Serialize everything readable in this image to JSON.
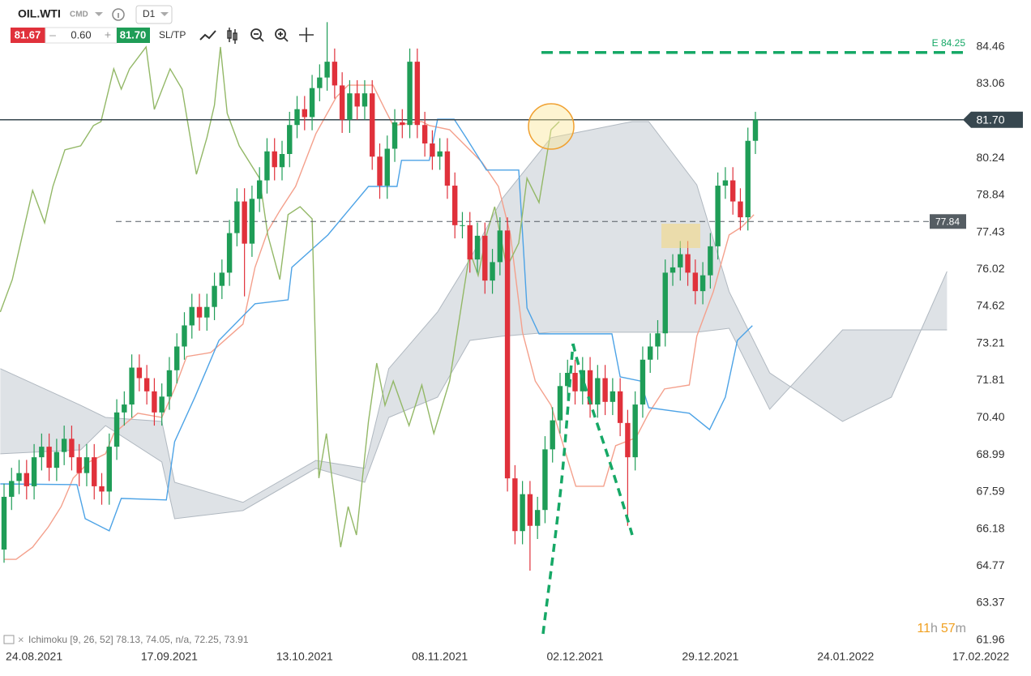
{
  "toolbar": {
    "symbol": "OIL.WTI",
    "category": "CMD",
    "interval": "D1",
    "bid": "81.67",
    "spread": "0.60",
    "ask": "81.70",
    "sltp": "SL/TP"
  },
  "indicator_legend": "Ichimoku [9, 26, 52] 78.13, 74.05, n/a, 72.25, 73.91",
  "timer": {
    "hours": "11",
    "hours_unit": "h",
    "minutes": "57",
    "minutes_unit": "m"
  },
  "chart_data": {
    "type": "candlestick",
    "up_color": "#1f9d57",
    "down_color": "#e0313b",
    "xlim": [
      -0.54,
      135.6
    ],
    "xticks": [
      {
        "value": 4,
        "label": "24.08.2021"
      },
      {
        "value": 22,
        "label": "17.09.2021"
      },
      {
        "value": 40,
        "label": "13.10.2021"
      },
      {
        "value": 58,
        "label": "08.11.2021"
      },
      {
        "value": 76,
        "label": "02.12.2021"
      },
      {
        "value": 94,
        "label": "29.12.2021"
      },
      {
        "value": 112,
        "label": "24.01.2022"
      },
      {
        "value": 130,
        "label": "17.02.2022"
      }
    ],
    "ylim": [
      61.65,
      86.24
    ],
    "yticks": [
      84.46,
      83.06,
      80.24,
      78.84,
      77.43,
      76.02,
      74.62,
      73.21,
      71.81,
      {
        "value": 70.4,
        "label": "70.40"
      },
      68.99,
      67.59,
      66.18,
      64.77,
      63.37,
      61.96
    ],
    "grid": false,
    "open": [
      65.4,
      67.4,
      68.0,
      68.3,
      67.8,
      68.9,
      69.3,
      68.5,
      69.1,
      69.6,
      68.9,
      68.3,
      68.9,
      67.8,
      67.6,
      69.3,
      70.6,
      70.9,
      72.3,
      71.9,
      71.4,
      70.6,
      71.2,
      72.2,
      73.1,
      73.9,
      74.6,
      74.2,
      74.6,
      75.4,
      75.9,
      77.4,
      78.6,
      77.0,
      78.7,
      79.4,
      80.5,
      79.9,
      80.4,
      81.5,
      82.1,
      81.8,
      82.9,
      83.3,
      83.9,
      83.0,
      81.7,
      82.7,
      82.2,
      82.7,
      80.3,
      79.2,
      80.6,
      81.6,
      81.5,
      83.9,
      81.5,
      80.8,
      80.3,
      80.5,
      79.2,
      77.7,
      77.7,
      76.4,
      77.3,
      75.6,
      76.3,
      77.5,
      68.1,
      66.1,
      67.5,
      66.3,
      66.9,
      69.2,
      70.3,
      71.6,
      72.1,
      71.4,
      72.2,
      70.9,
      71.9,
      71.0,
      71.4,
      70.2,
      68.9,
      70.9,
      72.6,
      73.1,
      73.6,
      75.9,
      76.1,
      76.6,
      75.9,
      75.2,
      75.8,
      76.9,
      79.2,
      79.4,
      78.6,
      78.0,
      80.9
    ],
    "high": [
      67.9,
      68.5,
      68.8,
      68.8,
      69.4,
      69.8,
      69.8,
      69.6,
      70.1,
      70.1,
      69.4,
      69.4,
      69.4,
      68.3,
      69.8,
      71.1,
      71.4,
      72.8,
      72.8,
      72.4,
      71.9,
      71.7,
      72.7,
      73.6,
      74.4,
      75.1,
      75.1,
      75.1,
      75.9,
      76.4,
      77.9,
      79.1,
      79.1,
      79.2,
      79.9,
      81.0,
      81.0,
      80.9,
      82.0,
      82.6,
      82.6,
      83.4,
      83.8,
      85.4,
      84.4,
      83.5,
      83.2,
      83.2,
      83.2,
      83.2,
      80.8,
      81.1,
      82.1,
      82.1,
      84.4,
      84.4,
      82.0,
      81.3,
      81.0,
      81.0,
      79.7,
      78.2,
      78.2,
      77.8,
      77.8,
      76.8,
      78.0,
      78.0,
      68.6,
      68.0,
      68.0,
      67.4,
      69.7,
      70.8,
      72.1,
      72.6,
      72.6,
      72.7,
      72.7,
      72.4,
      72.4,
      71.9,
      71.9,
      70.7,
      71.4,
      73.1,
      73.6,
      74.1,
      76.4,
      76.6,
      77.1,
      77.1,
      76.4,
      76.3,
      77.4,
      79.7,
      79.9,
      79.9,
      79.1,
      81.4,
      82.0
    ],
    "low": [
      64.9,
      66.9,
      67.5,
      67.3,
      67.3,
      68.4,
      68.0,
      68.0,
      68.6,
      68.4,
      67.8,
      67.8,
      67.3,
      67.1,
      67.1,
      68.8,
      70.1,
      70.4,
      71.4,
      70.9,
      70.1,
      70.1,
      70.7,
      71.7,
      72.6,
      73.4,
      73.7,
      73.7,
      74.1,
      74.9,
      75.4,
      76.9,
      75.0,
      76.5,
      78.2,
      78.9,
      79.4,
      79.4,
      79.9,
      81.0,
      81.3,
      81.3,
      82.4,
      82.8,
      82.5,
      81.2,
      81.2,
      81.7,
      81.7,
      79.8,
      78.7,
      78.7,
      80.1,
      81.0,
      81.0,
      81.0,
      80.3,
      79.8,
      79.8,
      78.7,
      77.2,
      77.2,
      75.9,
      75.9,
      75.1,
      75.1,
      75.8,
      67.6,
      65.6,
      65.6,
      64.6,
      65.8,
      66.4,
      68.7,
      69.8,
      71.1,
      70.9,
      70.9,
      70.4,
      70.4,
      70.5,
      70.5,
      69.7,
      66.3,
      68.4,
      70.4,
      72.1,
      72.6,
      73.1,
      75.4,
      75.6,
      75.4,
      74.7,
      74.7,
      75.3,
      76.4,
      78.7,
      78.1,
      77.5,
      77.5,
      80.4
    ],
    "close": [
      67.4,
      68.0,
      68.3,
      67.8,
      68.9,
      69.3,
      68.5,
      69.1,
      69.6,
      68.9,
      68.3,
      68.9,
      67.8,
      67.6,
      69.3,
      70.6,
      70.9,
      72.3,
      71.9,
      71.4,
      70.6,
      71.2,
      72.2,
      73.1,
      73.9,
      74.6,
      74.2,
      74.6,
      75.4,
      75.9,
      77.4,
      78.6,
      77.0,
      78.7,
      79.4,
      80.5,
      79.9,
      80.4,
      81.5,
      82.1,
      81.8,
      82.9,
      83.3,
      83.9,
      83.0,
      81.7,
      82.7,
      82.2,
      82.7,
      80.3,
      79.2,
      80.6,
      81.6,
      81.5,
      83.9,
      81.5,
      80.8,
      80.3,
      80.5,
      79.2,
      77.7,
      77.7,
      76.4,
      77.3,
      75.6,
      76.3,
      77.5,
      68.1,
      66.1,
      67.5,
      66.3,
      66.9,
      69.2,
      70.3,
      71.6,
      72.1,
      71.4,
      72.2,
      70.9,
      71.9,
      71.0,
      71.4,
      70.2,
      68.9,
      70.9,
      72.6,
      73.1,
      73.6,
      75.9,
      76.1,
      76.6,
      75.9,
      75.2,
      75.8,
      76.9,
      79.2,
      79.4,
      78.6,
      78.0,
      80.9,
      81.7
    ],
    "cloud": {
      "color": "#c3cad1",
      "edge_color": "#b0b8c0",
      "x": [
        -0.5,
        10.2,
        13.5,
        21,
        22.7,
        31.8,
        41.5,
        48,
        51.2,
        57.7,
        62,
        66.3,
        72.8,
        83.6,
        85.8,
        92.2,
        96.5,
        101.9,
        111.6,
        118.1,
        125.5
      ],
      "span_a": [
        72.26,
        70.87,
        70.41,
        70.26,
        67.95,
        67.19,
        68.78,
        68.48,
        72.26,
        74.41,
        76.41,
        78.71,
        81.02,
        81.63,
        81.63,
        79.23,
        75.18,
        72.1,
        70.26,
        71.18,
        75.95
      ],
      "span_b": [
        69.03,
        69.18,
        70.1,
        68.72,
        66.57,
        66.88,
        68.48,
        67.95,
        70.41,
        71.18,
        73.33,
        73.49,
        73.64,
        73.64,
        73.64,
        73.64,
        73.79,
        70.72,
        73.73,
        73.73,
        73.73
      ]
    },
    "lines": [
      {
        "color": "#f4a08c",
        "x": [
          0,
          1.6,
          3.8,
          5.9,
          7.6,
          9.2,
          11.3,
          13.5,
          14.6,
          17.8,
          21,
          22.7,
          24.3,
          27.5,
          31.8,
          33.4,
          35.1,
          36.7,
          38.8,
          41.5,
          44.2,
          45.8,
          49.1,
          50.7,
          51.8,
          55.6,
          56.6,
          59.3,
          63.6,
          65.8,
          67.4,
          69,
          70.7,
          72.8,
          76.1,
          79.8,
          81.4,
          84.1,
          85.8,
          87.9,
          91.2,
          92.2,
          94.4,
          96.5,
          98.2,
          99.8
        ],
        "values": [
          65.03,
          65.03,
          65.49,
          66.26,
          67.03,
          68.11,
          68.72,
          69.03,
          69.8,
          70.57,
          70.41,
          71.49,
          72.72,
          72.87,
          73.95,
          76.1,
          77.48,
          78.25,
          79.17,
          81.17,
          82.55,
          83.01,
          83.01,
          82.09,
          81.48,
          81.63,
          81.48,
          81.32,
          80.09,
          79.17,
          77.33,
          73.64,
          71.79,
          70.87,
          67.8,
          67.8,
          69.34,
          69.64,
          70.57,
          71.49,
          71.64,
          73.49,
          75.18,
          77.33,
          77.64,
          78.1
        ]
      },
      {
        "color": "#4da3e6",
        "x": [
          -0.5,
          9.7,
          10.8,
          14,
          15.6,
          21.6,
          22.7,
          25.4,
          28.6,
          33.4,
          37.8,
          38.3,
          43.1,
          45.8,
          48.5,
          52.3,
          52.9,
          56.6,
          57.7,
          59.9,
          61.5,
          64.2,
          68.5,
          69.6,
          71.2,
          80.9,
          82,
          84.7,
          85.8,
          91.2,
          93.9,
          96,
          97.6,
          99.6
        ],
        "values": [
          67.89,
          67.86,
          66.57,
          66.11,
          67.34,
          67.28,
          69.49,
          71.18,
          73.33,
          74.72,
          74.87,
          76.1,
          77.33,
          78.25,
          79.17,
          79.17,
          80.16,
          80.16,
          81.72,
          81.72,
          81.02,
          79.79,
          79.79,
          74.56,
          73.58,
          73.58,
          71.95,
          71.79,
          70.78,
          70.57,
          69.95,
          71.18,
          73.33,
          73.89
        ]
      },
      {
        "color": "#93b867",
        "x": [
          -0.5,
          1.1,
          2.2,
          3.8,
          5.4,
          6.5,
          8.1,
          10.2,
          11.9,
          12.9,
          14.6,
          15.6,
          16.7,
          18.9,
          20,
          22.1,
          23.7,
          25.6,
          27,
          28,
          28.8,
          29.7,
          31.3,
          34,
          35.1,
          36.7,
          37.8,
          39.4,
          41,
          41.9,
          42.9,
          44.8,
          45.8,
          46.9,
          48.5,
          49.6,
          50.7,
          51.8,
          53.9,
          55.6,
          57.2,
          59.3,
          60.4,
          62,
          63.1,
          64.2,
          65.3,
          66.9,
          68.5,
          69.6,
          71.2,
          72.8,
          73.9
        ],
        "values": [
          74.41,
          75.64,
          77.02,
          79.02,
          77.79,
          79.17,
          80.56,
          80.71,
          81.48,
          81.63,
          83.63,
          82.86,
          83.63,
          84.46,
          82.09,
          83.63,
          82.86,
          79.63,
          81.02,
          82.25,
          84.46,
          81.94,
          80.71,
          79.48,
          77.33,
          75.64,
          78.1,
          78.4,
          77.94,
          68.11,
          69.8,
          65.49,
          67.03,
          65.95,
          70.26,
          72.47,
          70.87,
          71.79,
          70.1,
          71.64,
          69.8,
          71.79,
          73.79,
          76.71,
          75.79,
          77.33,
          78.4,
          76.1,
          77.02,
          79.48,
          78.56,
          81.32,
          81.63
        ]
      }
    ],
    "price_lines": [
      {
        "value": 84.25,
        "label": "E 84.25",
        "color": "#16a866",
        "kind": "order"
      },
      {
        "value": 81.7,
        "label": "81.70",
        "color": "#37474f",
        "kind": "current"
      },
      {
        "value": 77.84,
        "label": "77.84",
        "color": "#555d63",
        "kind": "level"
      }
    ]
  }
}
